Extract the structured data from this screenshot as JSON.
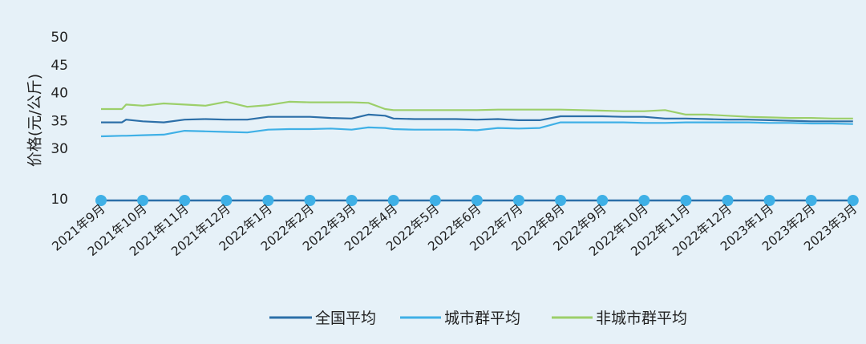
{
  "chart_data": {
    "type": "line",
    "title": "",
    "xlabel": "",
    "ylabel": "价格(元/公斤)",
    "ylim": [
      10,
      50
    ],
    "yticks": [
      10,
      30,
      35,
      40,
      45,
      50
    ],
    "y_axis_break": true,
    "grid": false,
    "legend_position": "bottom-center",
    "categories": [
      "2021年9月",
      "2021年10月",
      "2021年11月",
      "2021年12月",
      "2022年1月",
      "2022年2月",
      "2022年3月",
      "2022年4月",
      "2022年5月",
      "2022年6月",
      "2022年7月",
      "2022年8月",
      "2022年9月",
      "2022年10月",
      "2022年11月",
      "2022年12月",
      "2023年1月",
      "2023年2月",
      "2023年3月"
    ],
    "x": [
      0,
      0.5,
      0.6,
      1.0,
      1.5,
      2.0,
      2.5,
      3.0,
      3.5,
      4.0,
      4.5,
      5.0,
      5.5,
      6.0,
      6.4,
      6.8,
      7.0,
      7.5,
      8.0,
      8.5,
      9.0,
      9.5,
      10.0,
      10.5,
      11.0,
      11.5,
      12.0,
      12.5,
      13.0,
      13.5,
      14.0,
      14.5,
      15.0,
      15.5,
      16.0,
      16.5,
      17.0,
      17.5,
      18.0
    ],
    "series": [
      {
        "name": "全国平均",
        "color": "#2c6fa8",
        "values": [
          34.8,
          34.8,
          35.3,
          35.0,
          34.8,
          35.3,
          35.4,
          35.3,
          35.3,
          35.8,
          35.8,
          35.8,
          35.6,
          35.5,
          36.2,
          36.0,
          35.5,
          35.4,
          35.4,
          35.4,
          35.3,
          35.4,
          35.2,
          35.2,
          35.9,
          35.9,
          35.9,
          35.8,
          35.8,
          35.5,
          35.5,
          35.4,
          35.3,
          35.3,
          35.2,
          35.1,
          35.0,
          35.0,
          35.0
        ]
      },
      {
        "name": "城市群平均",
        "color": "#3fb0e6",
        "values": [
          32.3,
          32.4,
          32.4,
          32.5,
          32.6,
          33.3,
          33.2,
          33.1,
          33.0,
          33.5,
          33.6,
          33.6,
          33.7,
          33.5,
          33.9,
          33.8,
          33.6,
          33.5,
          33.5,
          33.5,
          33.4,
          33.8,
          33.7,
          33.8,
          34.8,
          34.8,
          34.8,
          34.8,
          34.7,
          34.7,
          34.8,
          34.8,
          34.8,
          34.8,
          34.7,
          34.7,
          34.6,
          34.6,
          34.5
        ]
      },
      {
        "name": "非城市群平均",
        "color": "#9ccf6a",
        "values": [
          37.2,
          37.2,
          38.0,
          37.8,
          38.2,
          38.0,
          37.8,
          38.5,
          37.6,
          37.9,
          38.5,
          38.4,
          38.4,
          38.4,
          38.3,
          37.2,
          37.0,
          37.0,
          37.0,
          37.0,
          37.0,
          37.1,
          37.1,
          37.1,
          37.1,
          37.0,
          36.9,
          36.8,
          36.8,
          37.0,
          36.2,
          36.2,
          36.0,
          35.8,
          35.7,
          35.6,
          35.6,
          35.5,
          35.5
        ]
      }
    ],
    "marker_color": "#3fb0e6"
  }
}
